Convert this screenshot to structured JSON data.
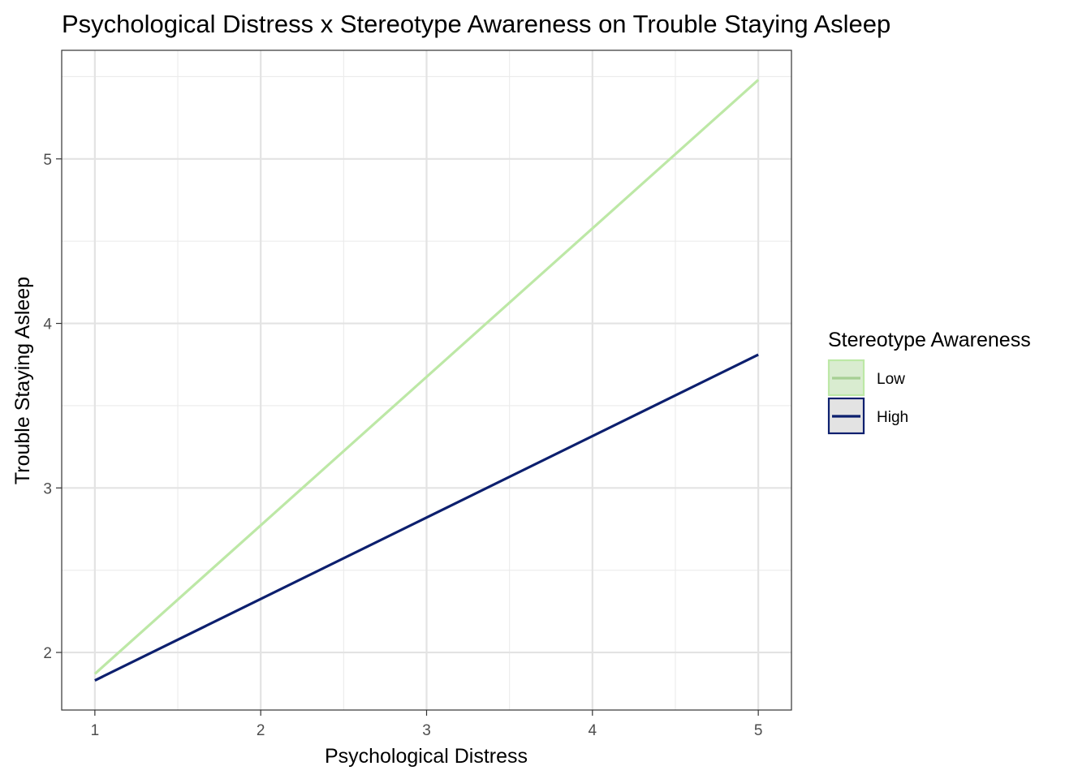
{
  "chart_data": {
    "type": "line",
    "title": "Psychological Distress x Stereotype Awareness on Trouble Staying Asleep",
    "xlabel": "Psychological Distress",
    "ylabel": "Trouble Staying Asleep",
    "xlim": [
      0.8,
      5.2
    ],
    "ylim": [
      1.65,
      5.66
    ],
    "x_ticks": [
      "1",
      "2",
      "3",
      "4",
      "5"
    ],
    "y_ticks": [
      "2",
      "3",
      "4",
      "5"
    ],
    "grid": true,
    "legend": {
      "title": "Stereotype Awareness",
      "position": "right"
    },
    "series": [
      {
        "name": "Low",
        "x": [
          1,
          5
        ],
        "values": [
          1.87,
          5.48
        ],
        "color": "#bde8a6"
      },
      {
        "name": "High",
        "x": [
          1,
          5
        ],
        "values": [
          1.83,
          3.81
        ],
        "color": "#0c1f6e"
      }
    ]
  }
}
